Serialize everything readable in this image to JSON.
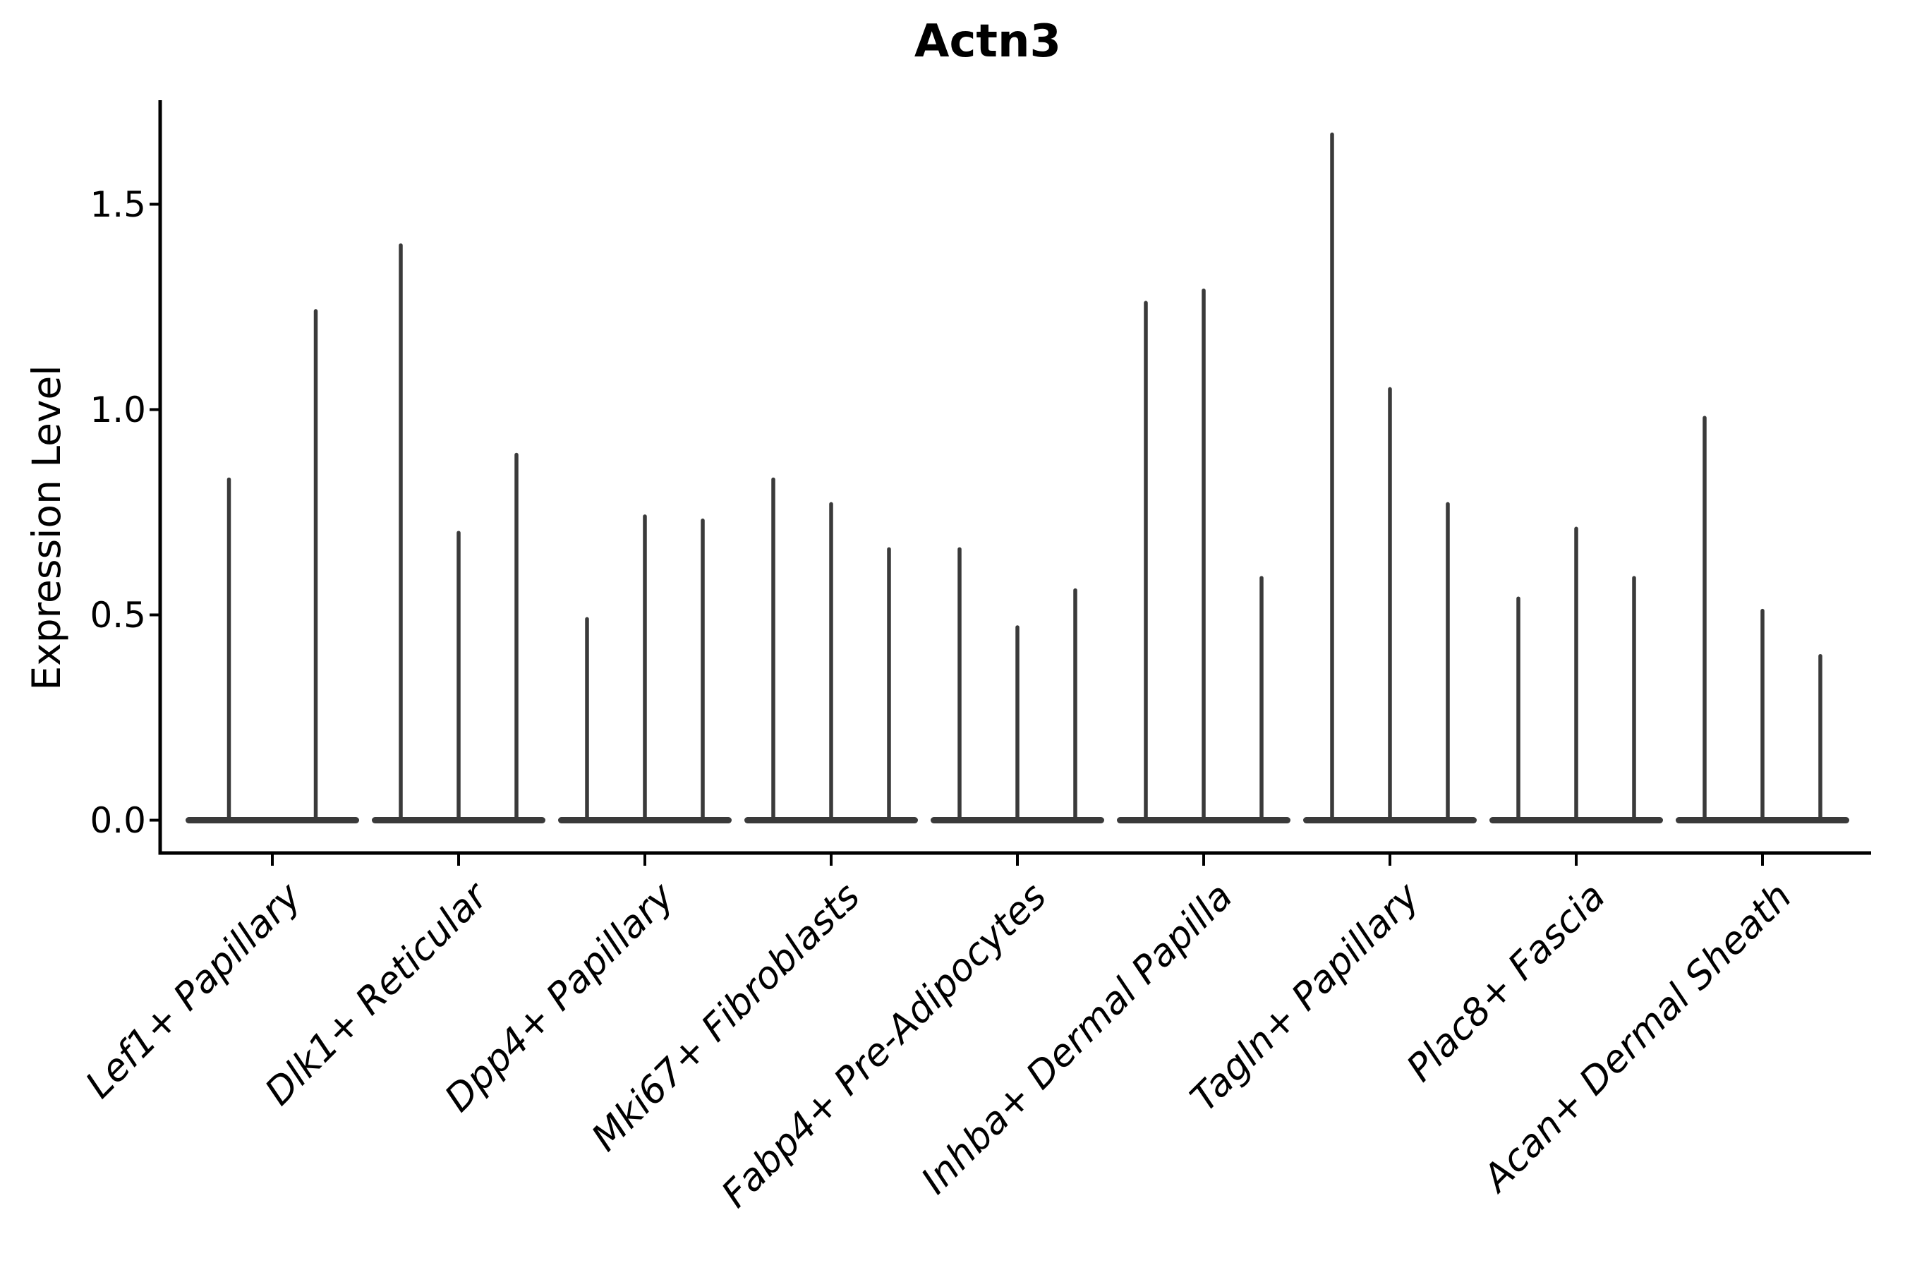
{
  "chart_data": {
    "type": "violin",
    "title": "Actn3",
    "ylabel": "Expression Level",
    "xlabel": "",
    "ytick_labels": [
      "0.0",
      "0.5",
      "1.0",
      "1.5"
    ],
    "ytick_values": [
      0.0,
      0.5,
      1.0,
      1.5
    ],
    "ylim": [
      -0.08,
      1.75
    ],
    "grid": false,
    "legend": false,
    "background_color": "#ffffff",
    "colors": {
      "violin": "#3a3a3a",
      "axis": "#000000",
      "text": "#000000"
    },
    "groups": [
      {
        "label": "Lef1+ Papillary",
        "violin_peaks": [
          0.83,
          1.24
        ]
      },
      {
        "label": "Dlk1+ Reticular",
        "violin_peaks": [
          1.4,
          0.7,
          0.89
        ]
      },
      {
        "label": "Dpp4+ Papillary",
        "violin_peaks": [
          0.49,
          0.74,
          0.73
        ]
      },
      {
        "label": "Mki67+ Fibroblasts",
        "violin_peaks": [
          0.83,
          0.77,
          0.66
        ]
      },
      {
        "label": "Fabp4+ Pre-Adipocytes",
        "violin_peaks": [
          0.66,
          0.47,
          0.56
        ]
      },
      {
        "label": "Inhba+ Dermal Papilla",
        "violin_peaks": [
          1.26,
          1.29,
          0.59
        ]
      },
      {
        "label": "Tagln+ Papillary",
        "violin_peaks": [
          1.67,
          1.05,
          0.77
        ]
      },
      {
        "label": "Plac8+ Fascia",
        "violin_peaks": [
          0.54,
          0.71,
          0.59
        ]
      },
      {
        "label": "Acan+ Dermal Sheath",
        "violin_peaks": [
          0.98,
          0.51,
          0.4
        ]
      }
    ]
  }
}
